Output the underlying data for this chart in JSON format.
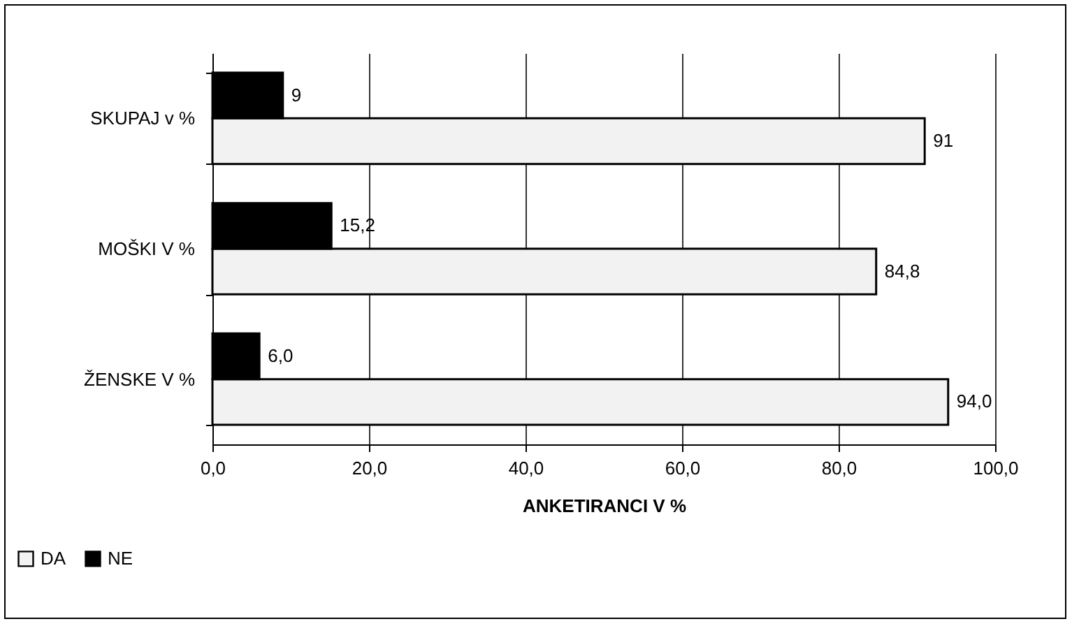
{
  "chart_data": {
    "type": "bar",
    "orientation": "horizontal",
    "xlabel": "ANKETIRANCI V %",
    "categories": [
      "SKUPAJ v %",
      "MOŠKI V %",
      "ŽENSKE V %"
    ],
    "series": [
      {
        "name": "DA",
        "color": "#f2f2f2",
        "values": [
          91,
          84.8,
          94.0
        ],
        "value_labels": [
          "91",
          "84,8",
          "94,0"
        ]
      },
      {
        "name": "NE",
        "color": "#000000",
        "values": [
          9,
          15.2,
          6.0
        ],
        "value_labels": [
          "9",
          "15,2",
          "6,0"
        ]
      }
    ],
    "xlim": [
      0,
      100
    ],
    "xticks": [
      {
        "value": 0,
        "label": "0,0"
      },
      {
        "value": 20,
        "label": "20,0"
      },
      {
        "value": 40,
        "label": "40,0"
      },
      {
        "value": 60,
        "label": "60,0"
      },
      {
        "value": 80,
        "label": "80,0"
      },
      {
        "value": 100,
        "label": "100,0"
      }
    ],
    "grid": "x",
    "legend": "bottom left"
  }
}
